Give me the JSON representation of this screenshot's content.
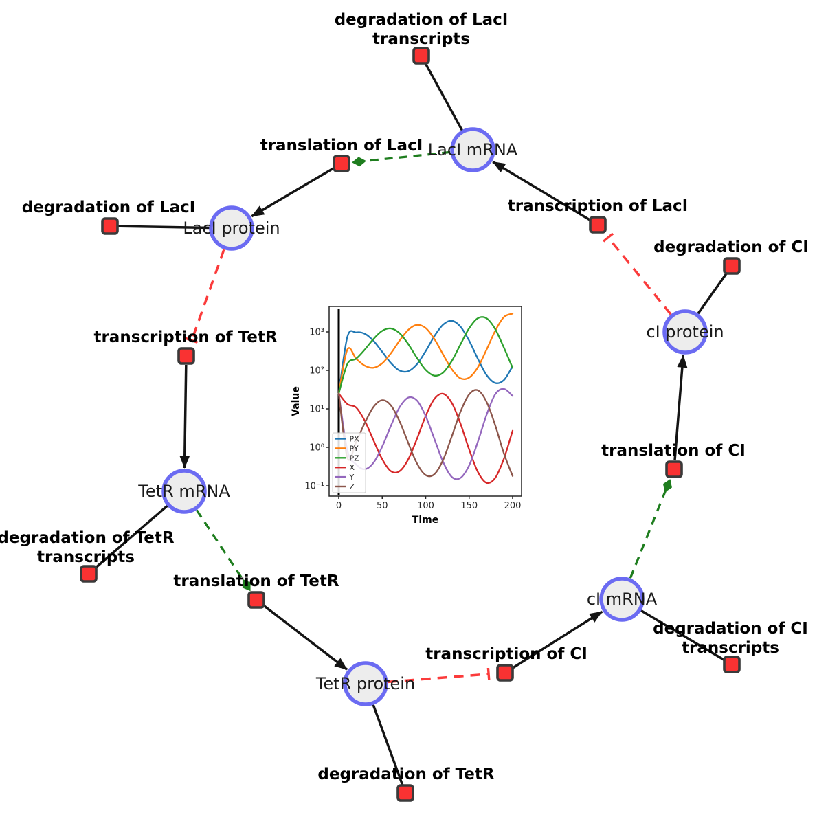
{
  "network": {
    "style": {
      "species_fill": "#ededed",
      "species_border": "#6b6bf2",
      "reaction_fill": "#f93232",
      "reaction_border": "#3a3a3a",
      "edge_color": "#141414",
      "catalysis_color": "#1e7d1e",
      "inhibition_color": "#fb3b3b"
    },
    "species": [
      {
        "id": "laci-mrna",
        "label": "LacI mRNA"
      },
      {
        "id": "laci-protein",
        "label": "LacI protein"
      },
      {
        "id": "ci-protein",
        "label": "cI protein"
      },
      {
        "id": "tetr-mrna",
        "label": "TetR mRNA"
      },
      {
        "id": "ci-mrna",
        "label": "cI mRNA"
      },
      {
        "id": "tetr-protein",
        "label": "TetR protein"
      }
    ],
    "reactions": [
      {
        "id": "degradation-laci-transcripts",
        "label_lines": [
          "degradation of LacI",
          "transcripts"
        ]
      },
      {
        "id": "translation-laci",
        "label_lines": [
          "translation of LacI"
        ]
      },
      {
        "id": "degradation-laci",
        "label_lines": [
          "degradation of LacI"
        ]
      },
      {
        "id": "transcription-laci",
        "label_lines": [
          "transcription of LacI"
        ]
      },
      {
        "id": "degradation-ci",
        "label_lines": [
          "degradation of CI"
        ]
      },
      {
        "id": "transcription-tetr",
        "label_lines": [
          "transcription of TetR"
        ]
      },
      {
        "id": "degradation-tetr-transcripts",
        "label_lines": [
          "degradation of TetR",
          "transcripts"
        ]
      },
      {
        "id": "translation-tetr",
        "label_lines": [
          "translation of TetR"
        ]
      },
      {
        "id": "degradation-tetr",
        "label_lines": [
          "degradation of TetR"
        ]
      },
      {
        "id": "transcription-ci",
        "label_lines": [
          "transcription of CI"
        ]
      },
      {
        "id": "degradation-ci-transcripts",
        "label_lines": [
          "degradation of CI",
          "transcripts"
        ]
      },
      {
        "id": "translation-ci",
        "label_lines": [
          "translation of CI"
        ]
      }
    ],
    "edges": [
      {
        "from": "LacI mRNA",
        "to": "degradation of LacI transcripts",
        "type": "consumption"
      },
      {
        "from": "translation of LacI",
        "to": "LacI protein",
        "type": "production"
      },
      {
        "from": "LacI protein",
        "to": "degradation of LacI",
        "type": "consumption"
      },
      {
        "from": "transcription of LacI",
        "to": "LacI mRNA",
        "type": "production"
      },
      {
        "from": "cI protein",
        "to": "degradation of CI",
        "type": "consumption"
      },
      {
        "from": "transcription of TetR",
        "to": "TetR mRNA",
        "type": "production"
      },
      {
        "from": "TetR mRNA",
        "to": "degradation of TetR transcripts",
        "type": "consumption"
      },
      {
        "from": "translation of TetR",
        "to": "TetR protein",
        "type": "production"
      },
      {
        "from": "TetR protein",
        "to": "degradation of TetR",
        "type": "consumption"
      },
      {
        "from": "transcription of CI",
        "to": "cI mRNA",
        "type": "production"
      },
      {
        "from": "cI mRNA",
        "to": "degradation of CI transcripts",
        "type": "consumption"
      },
      {
        "from": "translation of CI",
        "to": "cI protein",
        "type": "production"
      },
      {
        "from": "LacI mRNA",
        "to": "translation of LacI",
        "type": "catalysis"
      },
      {
        "from": "TetR mRNA",
        "to": "translation of TetR",
        "type": "catalysis"
      },
      {
        "from": "cI mRNA",
        "to": "translation of CI",
        "type": "catalysis"
      },
      {
        "from": "LacI protein",
        "to": "transcription of TetR",
        "type": "inhibition"
      },
      {
        "from": "TetR protein",
        "to": "transcription of CI",
        "type": "inhibition"
      },
      {
        "from": "cI protein",
        "to": "transcription of LacI",
        "type": "inhibition"
      }
    ]
  },
  "chart_data": {
    "type": "line",
    "title": "",
    "xlabel": "Time",
    "ylabel": "Value",
    "yscale": "log",
    "grid": false,
    "legend_position": "lower left",
    "x_ticks": [
      0,
      50,
      100,
      150,
      200
    ],
    "x_tick_labels": [
      "0",
      "50",
      "100",
      "150",
      "200"
    ],
    "y_tick_values": [
      0.1,
      1,
      10,
      100,
      1000
    ],
    "y_tick_labels": [
      "10⁻¹",
      "10⁰",
      "10¹",
      "10²",
      "10³"
    ],
    "xlim": [
      -11,
      210
    ],
    "ylim": [
      0.055,
      4600
    ],
    "event_line_x": 0,
    "x": [
      0,
      10,
      20,
      30,
      40,
      50,
      60,
      70,
      80,
      90,
      100,
      110,
      120,
      130,
      140,
      150,
      160,
      170,
      180,
      190,
      200
    ],
    "series": [
      {
        "name": "PX",
        "color": "#1f77b4",
        "values": [
          25,
          751,
          966,
          892,
          584,
          303,
          155,
          99,
          95,
          145,
          317,
          774,
          1542,
          1945,
          1368,
          590,
          200,
          76,
          47,
          56,
          129
        ]
      },
      {
        "name": "PY",
        "color": "#ff7f0e",
        "values": [
          25,
          350,
          201,
          132,
          117,
          153,
          279,
          592,
          1129,
          1521,
          1257,
          655,
          260,
          107,
          62,
          65,
          120,
          344,
          1069,
          2433,
          2985
        ]
      },
      {
        "name": "PZ",
        "color": "#2ca02c",
        "values": [
          25,
          148,
          201,
          349,
          656,
          1064,
          1228,
          925,
          481,
          210,
          103,
          73,
          87,
          175,
          472,
          1245,
          2265,
          2259,
          1180,
          389,
          116
        ]
      },
      {
        "name": "X",
        "color": "#d62728",
        "values": [
          25,
          13.3,
          10.8,
          4.84,
          1.52,
          0.49,
          0.24,
          0.24,
          0.49,
          1.68,
          6.56,
          18.1,
          24.7,
          14.3,
          4.14,
          0.88,
          0.23,
          0.12,
          0.16,
          0.51,
          2.71
        ]
      },
      {
        "name": "Y",
        "color": "#9467bd",
        "values": [
          25,
          0.82,
          0.36,
          0.27,
          0.4,
          1.05,
          3.64,
          11.0,
          19.6,
          16.4,
          6.5,
          1.66,
          0.42,
          0.17,
          0.16,
          0.34,
          1.39,
          6.9,
          23.9,
          33.0,
          21.7
        ]
      },
      {
        "name": "Z",
        "color": "#8c564b",
        "values": [
          25,
          0.53,
          1.38,
          4.34,
          11.2,
          16.8,
          12.3,
          4.75,
          1.29,
          0.38,
          0.19,
          0.2,
          0.47,
          1.92,
          8.38,
          23.8,
          30.3,
          15.3,
          3.75,
          0.69,
          0.18
        ]
      }
    ]
  }
}
